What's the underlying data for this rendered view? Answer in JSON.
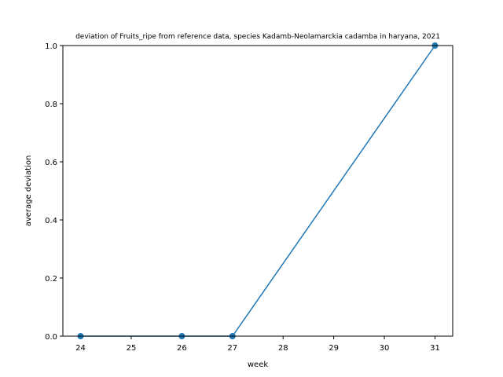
{
  "chart_data": {
    "type": "line",
    "title": "deviation of Fruits_ripe from reference data, species Kadamb-Neolamarckia cadamba in haryana, 2021",
    "xlabel": "week",
    "ylabel": "average deviation",
    "xlim": [
      23.65,
      31.35
    ],
    "ylim": [
      0,
      1
    ],
    "x_ticks": [
      24,
      25,
      26,
      27,
      28,
      29,
      30,
      31
    ],
    "y_ticks": [
      0.0,
      0.2,
      0.4,
      0.6,
      0.8,
      1.0
    ],
    "y_tick_labels": [
      "0.0",
      "0.2",
      "0.4",
      "0.6",
      "0.8",
      "1.0"
    ],
    "grid": false,
    "series": [
      {
        "x": [
          24,
          26,
          27,
          31
        ],
        "y": [
          0,
          0,
          0,
          1
        ],
        "color": "#1f77b4",
        "marker": "circle"
      }
    ]
  }
}
